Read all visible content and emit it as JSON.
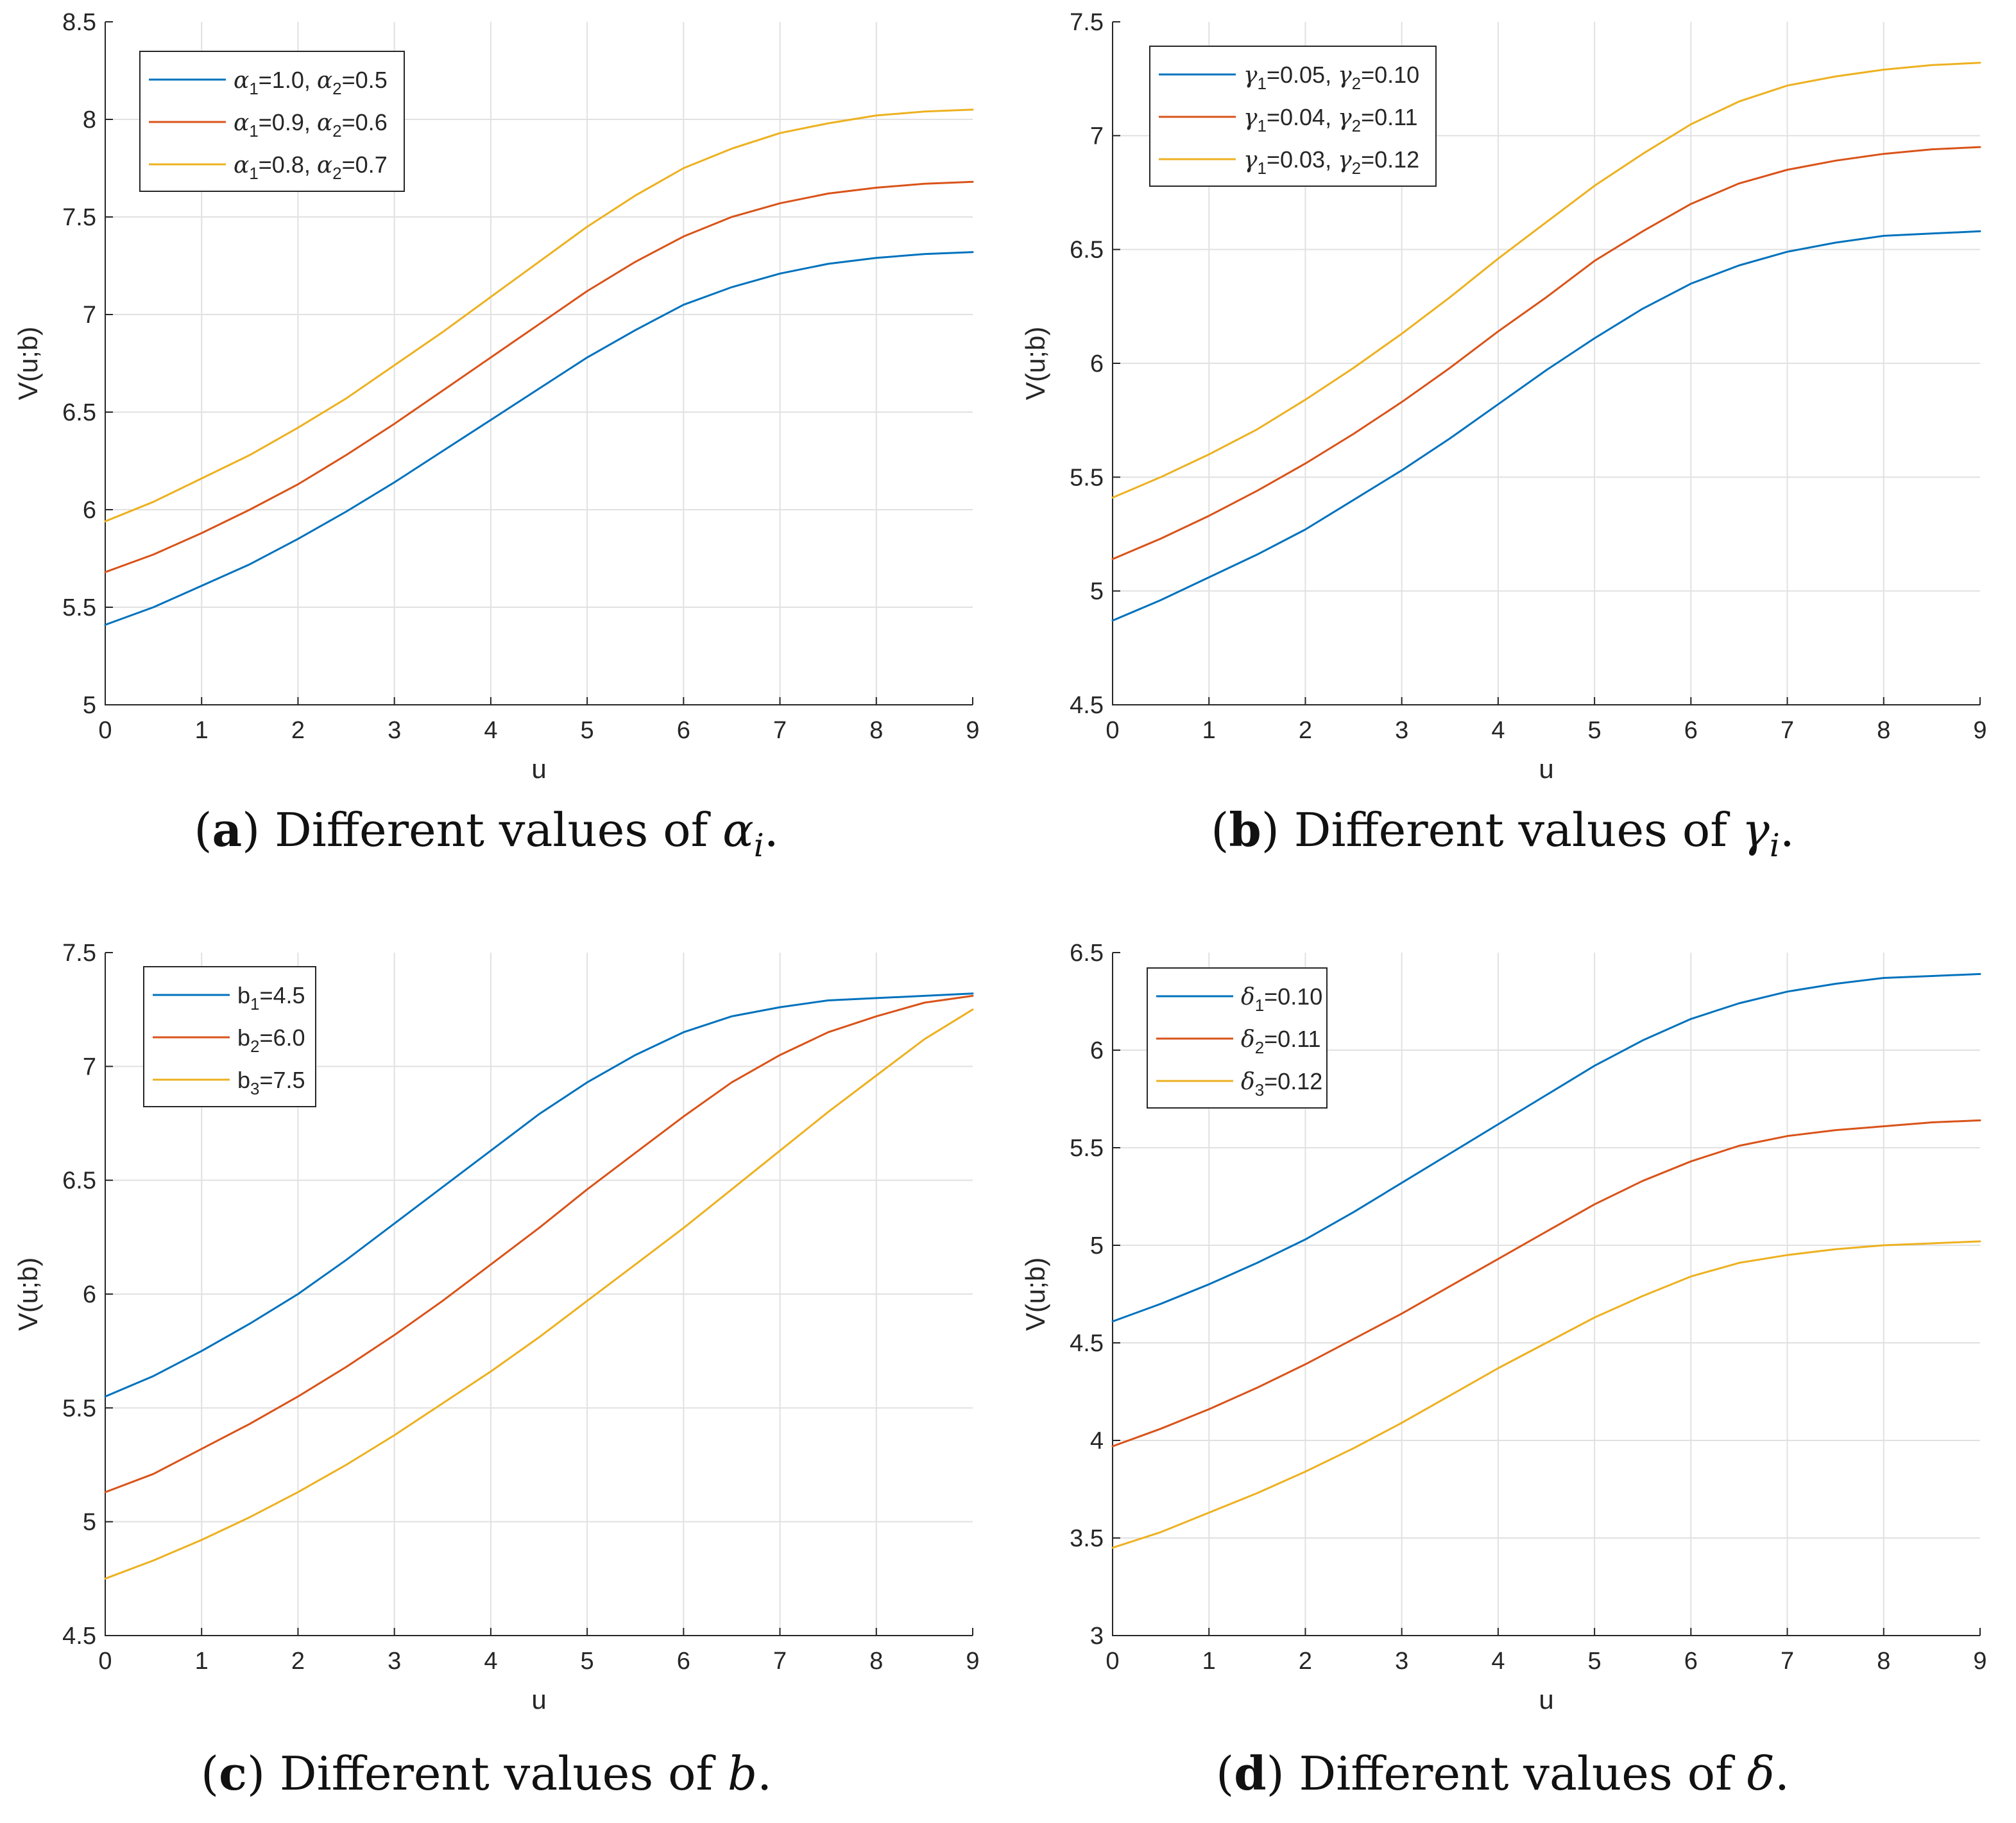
{
  "colors": {
    "series1": "#0072bd",
    "series2": "#d95319",
    "series3": "#edb120"
  },
  "chart_data": [
    {
      "type": "line",
      "id": "a",
      "xlabel": "u",
      "ylabel": "V(u;b)",
      "xlim": [
        0,
        9
      ],
      "ylim": [
        5,
        8.5
      ],
      "xticks": [
        0,
        1,
        2,
        3,
        4,
        5,
        6,
        7,
        8,
        9
      ],
      "yticks": [
        5,
        5.5,
        6,
        6.5,
        7,
        7.5,
        8,
        8.5
      ],
      "ytick_labels": [
        "5",
        "5.5",
        "6",
        "6.5",
        "7",
        "7.5",
        "8",
        "8.5"
      ],
      "legend_position": "top-left",
      "x": [
        0,
        0.5,
        1,
        1.5,
        2,
        2.5,
        3,
        3.5,
        4,
        4.5,
        5,
        5.5,
        6,
        6.5,
        7,
        7.5,
        8,
        8.5,
        9
      ],
      "series": [
        {
          "name": "α1=1.0, α2=0.5",
          "sym1": "α",
          "sub1": "1",
          "val1": "=1.0, ",
          "sym2": "α",
          "sub2": "2",
          "val2": "=0.5",
          "values": [
            5.41,
            5.5,
            5.61,
            5.72,
            5.85,
            5.99,
            6.14,
            6.3,
            6.46,
            6.62,
            6.78,
            6.92,
            7.05,
            7.14,
            7.21,
            7.26,
            7.29,
            7.31,
            7.32
          ]
        },
        {
          "name": "α1=0.9, α2=0.6",
          "sym1": "α",
          "sub1": "1",
          "val1": "=0.9, ",
          "sym2": "α",
          "sub2": "2",
          "val2": "=0.6",
          "values": [
            5.68,
            5.77,
            5.88,
            6.0,
            6.13,
            6.28,
            6.44,
            6.61,
            6.78,
            6.95,
            7.12,
            7.27,
            7.4,
            7.5,
            7.57,
            7.62,
            7.65,
            7.67,
            7.68
          ]
        },
        {
          "name": "α1=0.8, α2=0.7",
          "sym1": "α",
          "sub1": "1",
          "val1": "=0.8, ",
          "sym2": "α",
          "sub2": "2",
          "val2": "=0.7",
          "values": [
            5.94,
            6.04,
            6.16,
            6.28,
            6.42,
            6.57,
            6.74,
            6.91,
            7.09,
            7.27,
            7.45,
            7.61,
            7.75,
            7.85,
            7.93,
            7.98,
            8.02,
            8.04,
            8.05
          ]
        }
      ],
      "caption": {
        "label": "a",
        "text": " Different values of ",
        "symbol": "α",
        "sub": "i",
        "end": "."
      }
    },
    {
      "type": "line",
      "id": "b",
      "xlabel": "u",
      "ylabel": "V(u;b)",
      "xlim": [
        0,
        9
      ],
      "ylim": [
        4.5,
        7.5
      ],
      "xticks": [
        0,
        1,
        2,
        3,
        4,
        5,
        6,
        7,
        8,
        9
      ],
      "yticks": [
        4.5,
        5,
        5.5,
        6,
        6.5,
        7,
        7.5
      ],
      "ytick_labels": [
        "4.5",
        "5",
        "5.5",
        "6",
        "6.5",
        "7",
        "7.5"
      ],
      "legend_position": "top-left",
      "x": [
        0,
        0.5,
        1,
        1.5,
        2,
        2.5,
        3,
        3.5,
        4,
        4.5,
        5,
        5.5,
        6,
        6.5,
        7,
        7.5,
        8,
        8.5,
        9
      ],
      "series": [
        {
          "name": "γ1=0.05, γ2=0.10",
          "sym1": "γ",
          "sub1": "1",
          "val1": "=0.05, ",
          "sym2": "γ",
          "sub2": "2",
          "val2": "=0.10",
          "values": [
            4.87,
            4.96,
            5.06,
            5.16,
            5.27,
            5.4,
            5.53,
            5.67,
            5.82,
            5.97,
            6.11,
            6.24,
            6.35,
            6.43,
            6.49,
            6.53,
            6.56,
            6.57,
            6.58
          ]
        },
        {
          "name": "γ1=0.04, γ2=0.11",
          "sym1": "γ",
          "sub1": "1",
          "val1": "=0.04, ",
          "sym2": "γ",
          "sub2": "2",
          "val2": "=0.11",
          "values": [
            5.14,
            5.23,
            5.33,
            5.44,
            5.56,
            5.69,
            5.83,
            5.98,
            6.14,
            6.29,
            6.45,
            6.58,
            6.7,
            6.79,
            6.85,
            6.89,
            6.92,
            6.94,
            6.95
          ]
        },
        {
          "name": "γ1=0.03, γ2=0.12",
          "sym1": "γ",
          "sub1": "1",
          "val1": "=0.03, ",
          "sym2": "γ",
          "sub2": "2",
          "val2": "=0.12",
          "values": [
            5.41,
            5.5,
            5.6,
            5.71,
            5.84,
            5.98,
            6.13,
            6.29,
            6.46,
            6.62,
            6.78,
            6.92,
            7.05,
            7.15,
            7.22,
            7.26,
            7.29,
            7.31,
            7.32
          ]
        }
      ],
      "caption": {
        "label": "b",
        "text": " Different values of ",
        "symbol": "γ",
        "sub": "i",
        "end": "."
      }
    },
    {
      "type": "line",
      "id": "c",
      "xlabel": "u",
      "ylabel": "V(u;b)",
      "xlim": [
        0,
        9
      ],
      "ylim": [
        4.5,
        7.5
      ],
      "xticks": [
        0,
        1,
        2,
        3,
        4,
        5,
        6,
        7,
        8,
        9
      ],
      "yticks": [
        4.5,
        5,
        5.5,
        6,
        6.5,
        7,
        7.5
      ],
      "ytick_labels": [
        "4.5",
        "5",
        "5.5",
        "6",
        "6.5",
        "7",
        "7.5"
      ],
      "legend_position": "top-left",
      "x": [
        0,
        0.5,
        1,
        1.5,
        2,
        2.5,
        3,
        3.5,
        4,
        4.5,
        5,
        5.5,
        6,
        6.5,
        7,
        7.5,
        8,
        8.5,
        9
      ],
      "series": [
        {
          "name": "b1=4.5",
          "sym1": "b",
          "sub1": "1",
          "val1": "=4.5",
          "values": [
            5.55,
            5.64,
            5.75,
            5.87,
            6.0,
            6.15,
            6.31,
            6.47,
            6.63,
            6.79,
            6.93,
            7.05,
            7.15,
            7.22,
            7.26,
            7.29,
            7.3,
            7.31,
            7.32
          ]
        },
        {
          "name": "b2=6.0",
          "sym1": "b",
          "sub1": "2",
          "val1": "=6.0",
          "values": [
            5.13,
            5.21,
            5.32,
            5.43,
            5.55,
            5.68,
            5.82,
            5.97,
            6.13,
            6.29,
            6.46,
            6.62,
            6.78,
            6.93,
            7.05,
            7.15,
            7.22,
            7.28,
            7.31
          ]
        },
        {
          "name": "b3=7.5",
          "sym1": "b",
          "sub1": "3",
          "val1": "=7.5",
          "values": [
            4.75,
            4.83,
            4.92,
            5.02,
            5.13,
            5.25,
            5.38,
            5.52,
            5.66,
            5.81,
            5.97,
            6.13,
            6.29,
            6.46,
            6.63,
            6.8,
            6.96,
            7.12,
            7.25
          ]
        }
      ],
      "caption": {
        "label": "c",
        "text": " Different values of ",
        "symbol": "b",
        "sub": "",
        "end": "."
      }
    },
    {
      "type": "line",
      "id": "d",
      "xlabel": "u",
      "ylabel": "V(u;b)",
      "xlim": [
        0,
        9
      ],
      "ylim": [
        3,
        6.5
      ],
      "xticks": [
        0,
        1,
        2,
        3,
        4,
        5,
        6,
        7,
        8,
        9
      ],
      "yticks": [
        3,
        3.5,
        4,
        4.5,
        5,
        5.5,
        6,
        6.5
      ],
      "ytick_labels": [
        "3",
        "3.5",
        "4",
        "4.5",
        "5",
        "5.5",
        "6",
        "6.5"
      ],
      "legend_position": "top-left",
      "x": [
        0,
        0.5,
        1,
        1.5,
        2,
        2.5,
        3,
        3.5,
        4,
        4.5,
        5,
        5.5,
        6,
        6.5,
        7,
        7.5,
        8,
        8.5,
        9
      ],
      "series": [
        {
          "name": "δ1=0.10",
          "sym1": "δ",
          "sub1": "1",
          "val1": "=0.10",
          "values": [
            4.61,
            4.7,
            4.8,
            4.91,
            5.03,
            5.17,
            5.32,
            5.47,
            5.62,
            5.77,
            5.92,
            6.05,
            6.16,
            6.24,
            6.3,
            6.34,
            6.37,
            6.38,
            6.39
          ]
        },
        {
          "name": "δ2=0.11",
          "sym1": "δ",
          "sub1": "2",
          "val1": "=0.11",
          "values": [
            3.97,
            4.06,
            4.16,
            4.27,
            4.39,
            4.52,
            4.65,
            4.79,
            4.93,
            5.07,
            5.21,
            5.33,
            5.43,
            5.51,
            5.56,
            5.59,
            5.61,
            5.63,
            5.64
          ]
        },
        {
          "name": "δ3=0.12",
          "sym1": "δ",
          "sub1": "3",
          "val1": "=0.12",
          "values": [
            3.45,
            3.53,
            3.63,
            3.73,
            3.84,
            3.96,
            4.09,
            4.23,
            4.37,
            4.5,
            4.63,
            4.74,
            4.84,
            4.91,
            4.95,
            4.98,
            5.0,
            5.01,
            5.02
          ]
        }
      ],
      "caption": {
        "label": "d",
        "text": " Different values of ",
        "symbol": "δ",
        "sub": "",
        "end": "."
      }
    }
  ]
}
